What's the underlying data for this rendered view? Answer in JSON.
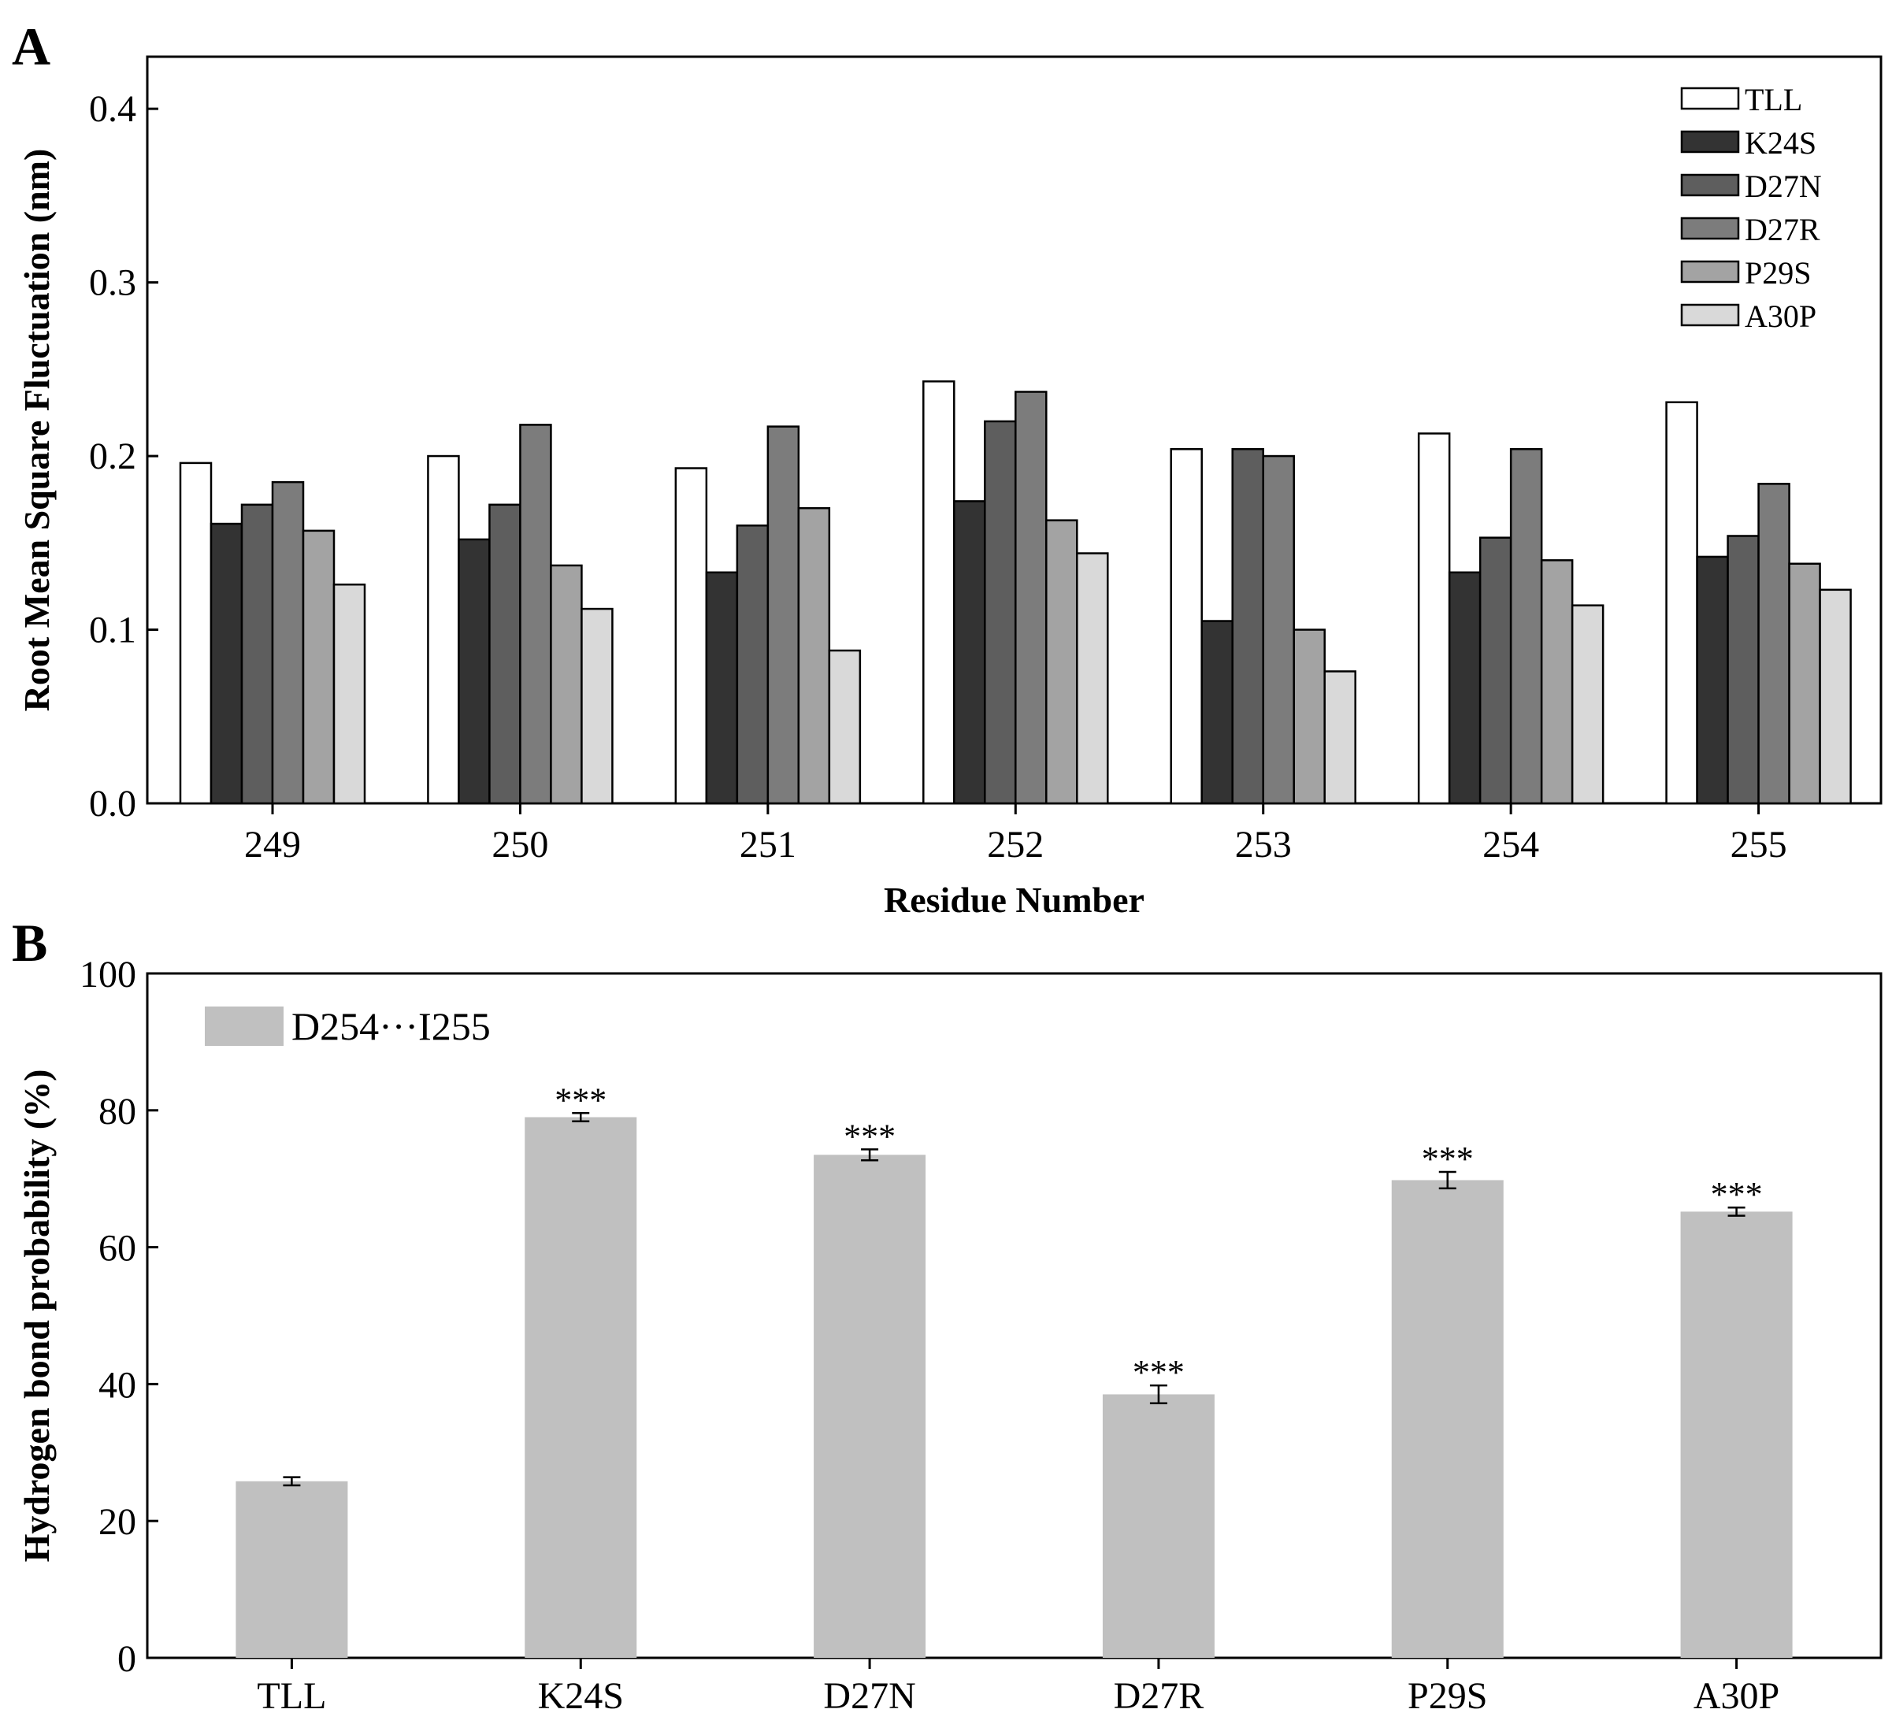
{
  "chart_data": [
    {
      "panel": "A",
      "type": "bar",
      "title": "",
      "xlabel": "Residue Number",
      "ylabel": "Root Mean Square Fluctuation (nm)",
      "ylim": [
        0.0,
        0.43
      ],
      "yticks": [
        "0.0",
        "0.1",
        "0.2",
        "0.3",
        "0.4"
      ],
      "legend_position": "top-right",
      "categories": [
        "249",
        "250",
        "251",
        "252",
        "253",
        "254",
        "255"
      ],
      "series": [
        {
          "name": "TLL",
          "color": "#ffffff",
          "values": [
            0.196,
            0.2,
            0.193,
            0.243,
            0.204,
            0.213,
            0.231
          ]
        },
        {
          "name": "K24S",
          "color": "#333333",
          "values": [
            0.161,
            0.152,
            0.133,
            0.174,
            0.105,
            0.133,
            0.142
          ]
        },
        {
          "name": "D27N",
          "color": "#5e5e5e",
          "values": [
            0.172,
            0.172,
            0.16,
            0.22,
            0.204,
            0.153,
            0.154
          ]
        },
        {
          "name": "D27R",
          "color": "#7c7c7c",
          "values": [
            0.185,
            0.218,
            0.217,
            0.237,
            0.2,
            0.204,
            0.184
          ]
        },
        {
          "name": "P29S",
          "color": "#a3a3a3",
          "values": [
            0.157,
            0.137,
            0.17,
            0.163,
            0.1,
            0.14,
            0.138
          ]
        },
        {
          "name": "A30P",
          "color": "#d9d9d9",
          "values": [
            0.126,
            0.112,
            0.088,
            0.144,
            0.076,
            0.114,
            0.123
          ]
        }
      ]
    },
    {
      "panel": "B",
      "type": "bar",
      "title": "",
      "xlabel": "",
      "ylabel": "Hydrogen bond probability (%)",
      "ylim": [
        0,
        100
      ],
      "yticks": [
        "0",
        "20",
        "40",
        "60",
        "80",
        "100"
      ],
      "legend_position": "top-left",
      "categories": [
        "TLL",
        "K24S",
        "D27N",
        "D27R",
        "P29S",
        "A30P"
      ],
      "series": [
        {
          "name": "D254···I255",
          "color": "#c0c0c0",
          "values": [
            25.8,
            79.0,
            73.5,
            38.5,
            69.8,
            65.2
          ],
          "errors": [
            0.6,
            0.6,
            0.8,
            1.3,
            1.2,
            0.6
          ],
          "annotations": [
            "",
            "***",
            "***",
            "***",
            "***",
            "***"
          ]
        }
      ]
    }
  ]
}
